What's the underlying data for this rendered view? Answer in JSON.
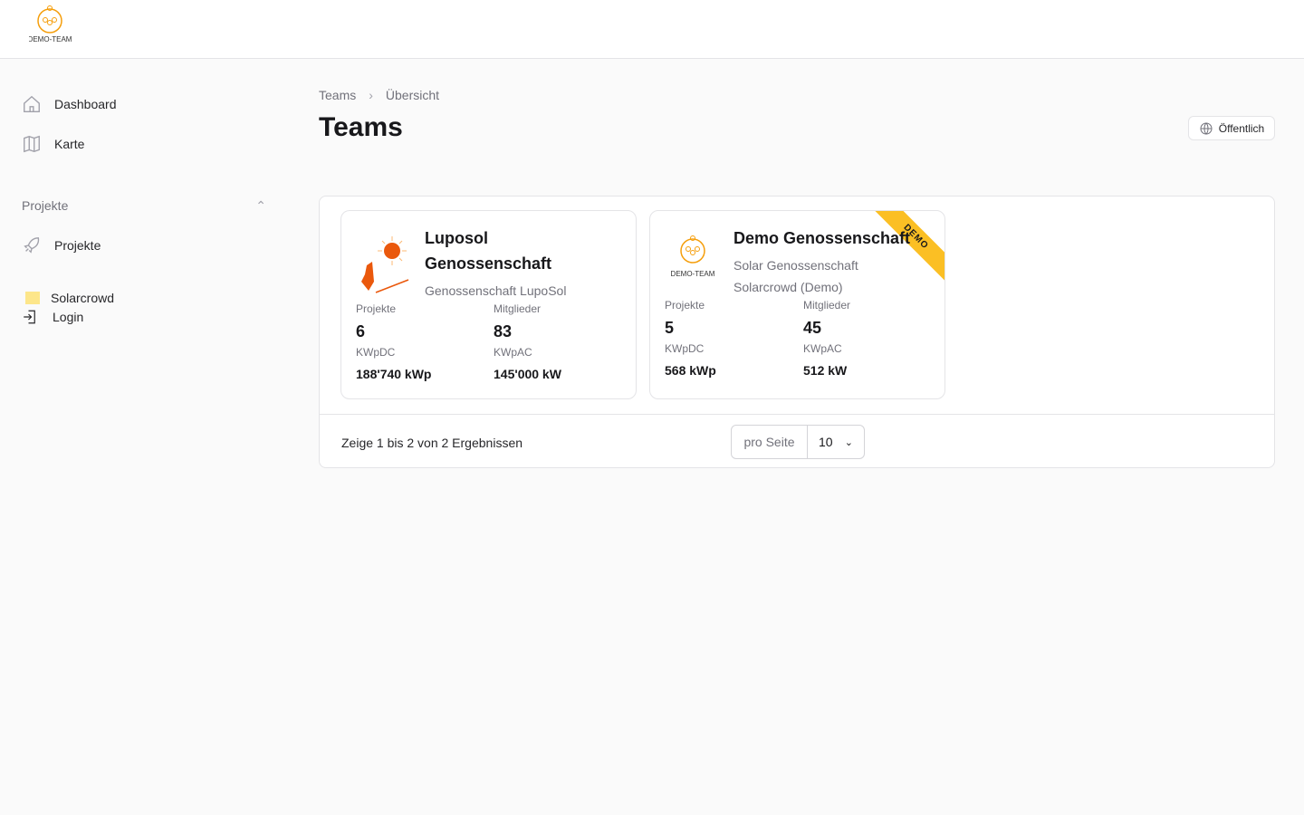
{
  "header": {
    "logo_text": "DEMO-TEAM"
  },
  "sidebar": {
    "items": [
      {
        "label": "Dashboard",
        "icon": "home-icon"
      },
      {
        "label": "Karte",
        "icon": "map-icon"
      }
    ],
    "section": "Projekte",
    "section_items": [
      {
        "label": "Projekte",
        "icon": "rocket-icon"
      }
    ],
    "footer_items": [
      {
        "label": "Solarcrowd",
        "icon": "solarcrowd-icon"
      },
      {
        "label": "Login",
        "icon": "login-icon"
      }
    ]
  },
  "breadcrumb": [
    "Teams",
    "Übersicht"
  ],
  "page": {
    "title": "Teams",
    "visibility_button": "Öffentlich"
  },
  "cards": [
    {
      "title": "Luposol Genossenschaft",
      "subtitles": [
        "Genossenschaft LupoSol"
      ],
      "stats": [
        {
          "label": "Projekte",
          "value": "6"
        },
        {
          "label": "Mitglieder",
          "value": "83"
        },
        {
          "label": "KWpDC",
          "value": "188'740 kWp"
        },
        {
          "label": "KWpAC",
          "value": "145'000 kW"
        }
      ]
    },
    {
      "title": "Demo Genossenschaft",
      "badge": "DEMO",
      "logo_text": "DEMO-TEAM",
      "subtitles": [
        "Solar Genossenschaft",
        "Solarcrowd (Demo)"
      ],
      "stats": [
        {
          "label": "Projekte",
          "value": "5"
        },
        {
          "label": "Mitglieder",
          "value": "45"
        },
        {
          "label": "KWpDC",
          "value": "568 kWp"
        },
        {
          "label": "KWpAC",
          "value": "512 kW"
        }
      ]
    }
  ],
  "pagination": {
    "summary": "Zeige 1 bis 2 von 2 Ergebnissen",
    "per_page_label": "pro Seite",
    "per_page_value": "10"
  },
  "colors": {
    "accent": "#f59e0b",
    "badge": "#fbbf24",
    "luposol": "#ea580c"
  }
}
